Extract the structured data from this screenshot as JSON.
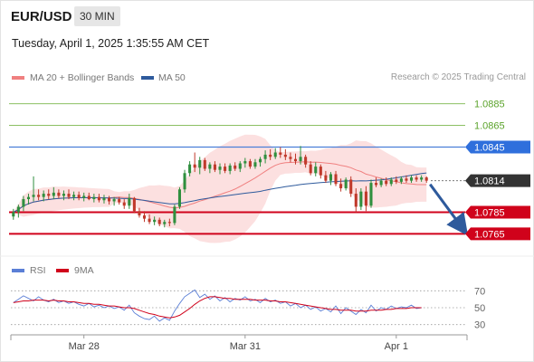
{
  "header": {
    "symbol": "EUR/USD",
    "timeframe": "30 MIN"
  },
  "datetime": "Tuesday, April 1, 2025 1:35:55 AM CET",
  "legend": {
    "ma20_label": "MA 20 + Bollinger Bands",
    "ma50_label": "MA 50",
    "ma20_color": "#f08080",
    "ma50_color": "#2e5a9c"
  },
  "credit": "Research © 2025 Trading Central",
  "rsi_legend": {
    "rsi_label": "RSI",
    "ma_label": "9MA",
    "rsi_color": "#5b7fd6",
    "ma_color": "#d0021b"
  },
  "chart_data": [
    {
      "type": "candlestick",
      "title": "EUR/USD",
      "ylim": [
        1.0757,
        1.0903
      ],
      "price_labels": [
        {
          "value": 1.0885,
          "text": "1.0885",
          "style": "resistance-green"
        },
        {
          "value": 1.0865,
          "text": "1.0865",
          "style": "resistance-green"
        },
        {
          "value": 1.0845,
          "text": "1.0845",
          "style": "pivot-blue"
        },
        {
          "value": 1.0814,
          "text": "1.0814",
          "style": "last-price"
        },
        {
          "value": 1.0785,
          "text": "1.0785",
          "style": "support-red"
        },
        {
          "value": 1.0765,
          "text": "1.0765",
          "style": "support-red"
        }
      ],
      "x_ticks": [
        "Mar 28",
        "Mar 31",
        "Apr 1"
      ],
      "projection": {
        "from": 1.0814,
        "to": 1.0768
      },
      "series": [
        {
          "kind": "ohlc",
          "values": [
            [
              1.0781,
              1.0788,
              1.0778,
              1.0785
            ],
            [
              1.0785,
              1.0792,
              1.078,
              1.079
            ],
            [
              1.079,
              1.08,
              1.0786,
              1.0797
            ],
            [
              1.0797,
              1.0802,
              1.0792,
              1.0799
            ],
            [
              1.0799,
              1.0818,
              1.0795,
              1.0801
            ],
            [
              1.0801,
              1.0806,
              1.0796,
              1.0799
            ],
            [
              1.0799,
              1.0805,
              1.0795,
              1.0802
            ],
            [
              1.0802,
              1.0806,
              1.0797,
              1.08
            ],
            [
              1.08,
              1.0808,
              1.0797,
              1.0803
            ],
            [
              1.0803,
              1.0806,
              1.0798,
              1.08
            ],
            [
              1.08,
              1.0805,
              1.0796,
              1.0802
            ],
            [
              1.0802,
              1.0806,
              1.0797,
              1.0799
            ],
            [
              1.0799,
              1.0804,
              1.0796,
              1.0801
            ],
            [
              1.0801,
              1.0804,
              1.0796,
              1.0798
            ],
            [
              1.0798,
              1.0803,
              1.0795,
              1.08
            ],
            [
              1.08,
              1.0803,
              1.0796,
              1.0797
            ],
            [
              1.0797,
              1.0802,
              1.0794,
              1.0799
            ],
            [
              1.0799,
              1.0802,
              1.0794,
              1.0796
            ],
            [
              1.0796,
              1.0801,
              1.0793,
              1.0798
            ],
            [
              1.0798,
              1.08,
              1.0792,
              1.0795
            ],
            [
              1.0795,
              1.0799,
              1.0791,
              1.0797
            ],
            [
              1.0797,
              1.0799,
              1.0792,
              1.0794
            ],
            [
              1.0794,
              1.0797,
              1.0788,
              1.0791
            ],
            [
              1.0791,
              1.0802,
              1.0788,
              1.0798
            ],
            [
              1.0798,
              1.0799,
              1.0784,
              1.0786
            ],
            [
              1.0786,
              1.0789,
              1.078,
              1.0782
            ],
            [
              1.0782,
              1.0786,
              1.0776,
              1.0779
            ],
            [
              1.0779,
              1.0783,
              1.0774,
              1.0776
            ],
            [
              1.0776,
              1.0781,
              1.0773,
              1.0778
            ],
            [
              1.0778,
              1.078,
              1.0772,
              1.0774
            ],
            [
              1.0774,
              1.0778,
              1.0771,
              1.0776
            ],
            [
              1.0776,
              1.0779,
              1.0772,
              1.0775
            ],
            [
              1.0775,
              1.0792,
              1.0773,
              1.079
            ],
            [
              1.079,
              1.0808,
              1.0788,
              1.0806
            ],
            [
              1.0806,
              1.0824,
              1.0803,
              1.0821
            ],
            [
              1.0821,
              1.0832,
              1.0818,
              1.0829
            ],
            [
              1.0829,
              1.084,
              1.0822,
              1.0826
            ],
            [
              1.0826,
              1.0836,
              1.082,
              1.0833
            ],
            [
              1.0833,
              1.0835,
              1.0823,
              1.0825
            ],
            [
              1.0825,
              1.0831,
              1.0821,
              1.0829
            ],
            [
              1.0829,
              1.0832,
              1.0822,
              1.0824
            ],
            [
              1.0824,
              1.083,
              1.082,
              1.0827
            ],
            [
              1.0827,
              1.083,
              1.0821,
              1.0823
            ],
            [
              1.0823,
              1.083,
              1.082,
              1.0828
            ],
            [
              1.0828,
              1.0831,
              1.0823,
              1.0825
            ],
            [
              1.0825,
              1.0832,
              1.0822,
              1.083
            ],
            [
              1.083,
              1.0835,
              1.0826,
              1.0832
            ],
            [
              1.0832,
              1.0834,
              1.0825,
              1.0827
            ],
            [
              1.0827,
              1.0834,
              1.0825,
              1.0831
            ],
            [
              1.0831,
              1.0836,
              1.0827,
              1.0834
            ],
            [
              1.0834,
              1.0842,
              1.083,
              1.0838
            ],
            [
              1.0838,
              1.0843,
              1.0833,
              1.0836
            ],
            [
              1.0836,
              1.0844,
              1.0834,
              1.084
            ],
            [
              1.084,
              1.0845,
              1.0835,
              1.0838
            ],
            [
              1.0838,
              1.0843,
              1.0833,
              1.0836
            ],
            [
              1.0836,
              1.084,
              1.0831,
              1.0834
            ],
            [
              1.0834,
              1.0839,
              1.0829,
              1.0832
            ],
            [
              1.0832,
              1.0846,
              1.0829,
              1.0836
            ],
            [
              1.0836,
              1.0838,
              1.0826,
              1.0829
            ],
            [
              1.0829,
              1.0832,
              1.0819,
              1.0821
            ],
            [
              1.0821,
              1.0831,
              1.0818,
              1.0827
            ],
            [
              1.0827,
              1.0829,
              1.0816,
              1.0819
            ],
            [
              1.0819,
              1.0823,
              1.0812,
              1.0814
            ],
            [
              1.0814,
              1.0822,
              1.081,
              1.082
            ],
            [
              1.082,
              1.0823,
              1.0809,
              1.0811
            ],
            [
              1.0811,
              1.0816,
              1.0804,
              1.0807
            ],
            [
              1.0807,
              1.0817,
              1.0805,
              1.0815
            ],
            [
              1.0815,
              1.0818,
              1.0799,
              1.0802
            ],
            [
              1.0802,
              1.0807,
              1.0785,
              1.079
            ],
            [
              1.079,
              1.0807,
              1.0787,
              1.0804
            ],
            [
              1.0804,
              1.0809,
              1.0786,
              1.0791
            ],
            [
              1.0791,
              1.0815,
              1.0789,
              1.0812
            ],
            [
              1.0812,
              1.0817,
              1.0808,
              1.081
            ],
            [
              1.081,
              1.0816,
              1.0808,
              1.0814
            ],
            [
              1.0814,
              1.0817,
              1.0809,
              1.0811
            ],
            [
              1.0811,
              1.0817,
              1.0809,
              1.0815
            ],
            [
              1.0815,
              1.0818,
              1.0811,
              1.0813
            ],
            [
              1.0813,
              1.0818,
              1.0811,
              1.0816
            ],
            [
              1.0816,
              1.0819,
              1.0812,
              1.0814
            ],
            [
              1.0814,
              1.0819,
              1.0812,
              1.0817
            ],
            [
              1.0817,
              1.0819,
              1.0813,
              1.0815
            ],
            [
              1.0815,
              1.0819,
              1.0813,
              1.0817
            ],
            [
              1.0817,
              1.0818,
              1.0812,
              1.0814
            ]
          ]
        }
      ]
    },
    {
      "type": "line",
      "title": "RSI",
      "ylim": [
        20,
        80
      ],
      "y_ticks": [
        70,
        50,
        30
      ],
      "series": [
        {
          "name": "RSI",
          "values": [
            56,
            60,
            64,
            61,
            58,
            63,
            59,
            57,
            60,
            56,
            58,
            55,
            57,
            54,
            52,
            55,
            51,
            53,
            50,
            52,
            49,
            51,
            47,
            53,
            44,
            40,
            37,
            36,
            40,
            34,
            38,
            35,
            46,
            55,
            63,
            67,
            71,
            62,
            66,
            60,
            64,
            58,
            62,
            57,
            61,
            59,
            63,
            58,
            60,
            56,
            61,
            57,
            59,
            55,
            57,
            52,
            55,
            50,
            53,
            48,
            51,
            46,
            49,
            45,
            52,
            43,
            50,
            46,
            42,
            48,
            44,
            53,
            46,
            50,
            48,
            52,
            49,
            51,
            50,
            53,
            49,
            50
          ]
        },
        {
          "name": "9MA",
          "values": [
            56,
            57,
            58,
            58,
            59,
            59,
            59,
            58,
            59,
            58,
            58,
            57,
            57,
            56,
            55,
            55,
            54,
            54,
            53,
            52,
            52,
            51,
            50,
            50,
            49,
            47,
            45,
            43,
            42,
            40,
            39,
            38,
            39,
            41,
            45,
            49,
            54,
            58,
            61,
            63,
            63,
            62,
            61,
            61,
            60,
            60,
            60,
            60,
            59,
            59,
            59,
            58,
            58,
            57,
            57,
            56,
            55,
            54,
            53,
            52,
            51,
            50,
            49,
            48,
            48,
            47,
            47,
            47,
            46,
            46,
            46,
            47,
            47,
            47,
            48,
            48,
            49,
            49,
            49,
            50,
            50,
            50
          ]
        }
      ]
    }
  ]
}
